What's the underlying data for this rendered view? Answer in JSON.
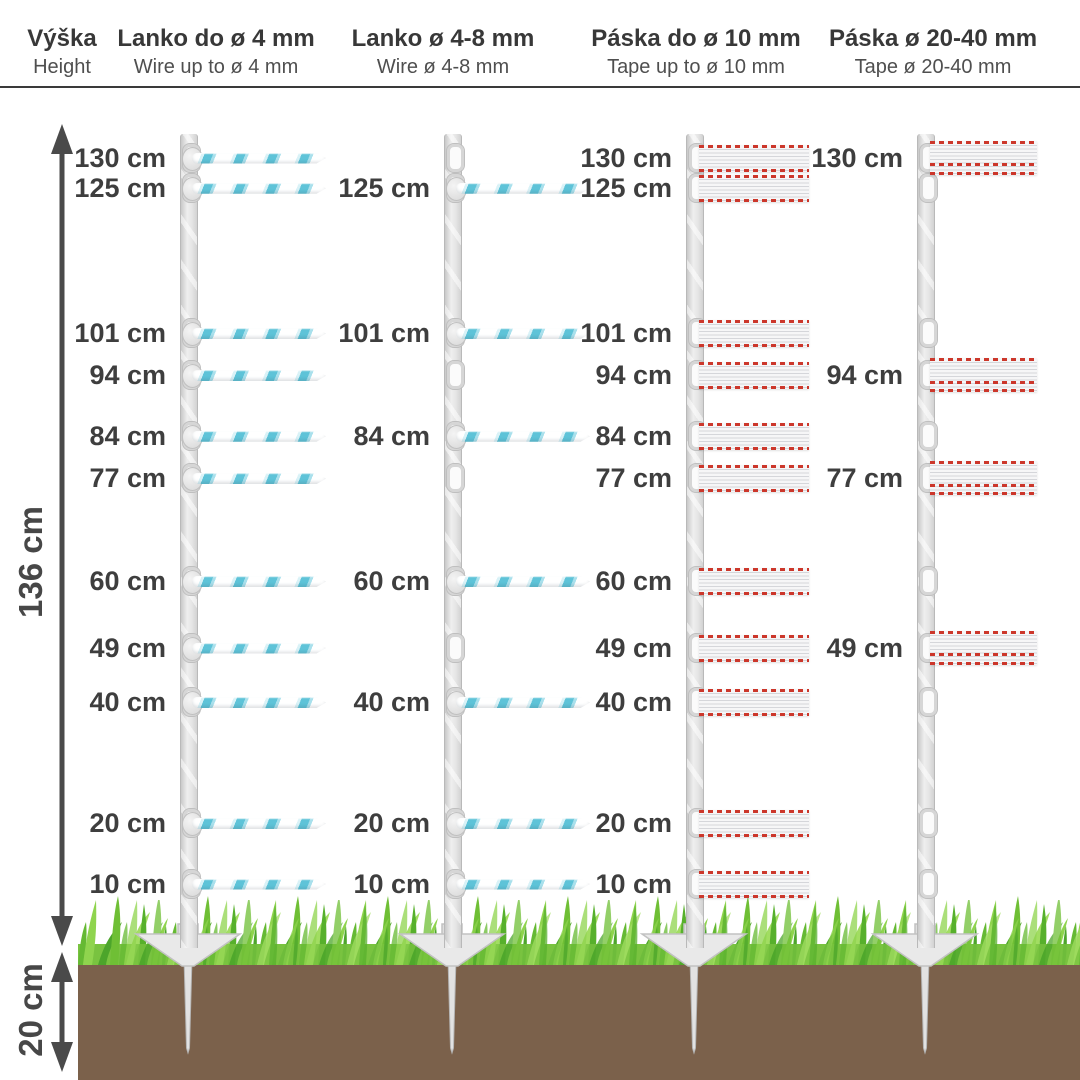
{
  "header": {
    "height_col": {
      "title": "Výška",
      "subtitle": "Height"
    },
    "product_cols": [
      {
        "title": "Lanko do ø 4 mm",
        "subtitle": "Wire up to ø 4 mm"
      },
      {
        "title": "Lanko ø 4-8 mm",
        "subtitle": "Wire ø 4-8 mm"
      },
      {
        "title": "Páska do ø 10 mm",
        "subtitle": "Tape up to ø 10 mm"
      },
      {
        "title": "Páska ø 20-40 mm",
        "subtitle": "Tape ø 20-40 mm"
      }
    ]
  },
  "measurements": {
    "above_ground_label": "136 cm",
    "below_ground_label": "20 cm"
  },
  "standard_heights_cm": [
    130,
    125,
    101,
    94,
    84,
    77,
    60,
    49,
    40,
    20,
    10
  ],
  "columns": [
    {
      "product": "wire-up-to-4mm",
      "attachment_type": "rope",
      "attachments": [
        {
          "cm": 130,
          "label": "130 cm"
        },
        {
          "cm": 125,
          "label": "125 cm"
        },
        {
          "cm": 101,
          "label": "101 cm"
        },
        {
          "cm": 94,
          "label": "94 cm"
        },
        {
          "cm": 84,
          "label": "84 cm"
        },
        {
          "cm": 77,
          "label": "77 cm"
        },
        {
          "cm": 60,
          "label": "60 cm"
        },
        {
          "cm": 49,
          "label": "49 cm"
        },
        {
          "cm": 40,
          "label": "40 cm"
        },
        {
          "cm": 20,
          "label": "20 cm"
        },
        {
          "cm": 10,
          "label": "10 cm"
        }
      ]
    },
    {
      "product": "wire-4-8mm",
      "attachment_type": "rope",
      "attachments": [
        {
          "cm": 125,
          "label": "125 cm"
        },
        {
          "cm": 101,
          "label": "101 cm"
        },
        {
          "cm": 84,
          "label": "84 cm"
        },
        {
          "cm": 60,
          "label": "60 cm"
        },
        {
          "cm": 40,
          "label": "40 cm"
        },
        {
          "cm": 20,
          "label": "20 cm"
        },
        {
          "cm": 10,
          "label": "10 cm"
        }
      ]
    },
    {
      "product": "tape-up-to-10mm",
      "attachment_type": "tape",
      "attachments": [
        {
          "cm": 130,
          "label": "130 cm"
        },
        {
          "cm": 125,
          "label": "125 cm"
        },
        {
          "cm": 101,
          "label": "101 cm"
        },
        {
          "cm": 94,
          "label": "94 cm"
        },
        {
          "cm": 84,
          "label": "84 cm"
        },
        {
          "cm": 77,
          "label": "77 cm"
        },
        {
          "cm": 60,
          "label": "60 cm"
        },
        {
          "cm": 49,
          "label": "49 cm"
        },
        {
          "cm": 40,
          "label": "40 cm"
        },
        {
          "cm": 20,
          "label": "20 cm"
        },
        {
          "cm": 10,
          "label": "10 cm"
        }
      ]
    },
    {
      "product": "tape-20-40mm",
      "attachment_type": "tape_wide",
      "attachments": [
        {
          "cm": 130,
          "label": "130 cm"
        },
        {
          "cm": 94,
          "label": "94 cm"
        },
        {
          "cm": 77,
          "label": "77 cm"
        },
        {
          "cm": 49,
          "label": "49 cm"
        }
      ]
    }
  ],
  "colors": {
    "label_text": "#3e3e3e",
    "arrow": "#4a4a4a",
    "rope_accent": "#5ec3d8",
    "tape_accent": "#cc372b",
    "grass_green": "#6fbf35",
    "soil_brown": "#7b614b",
    "post_gray": "#e0e0e0"
  }
}
